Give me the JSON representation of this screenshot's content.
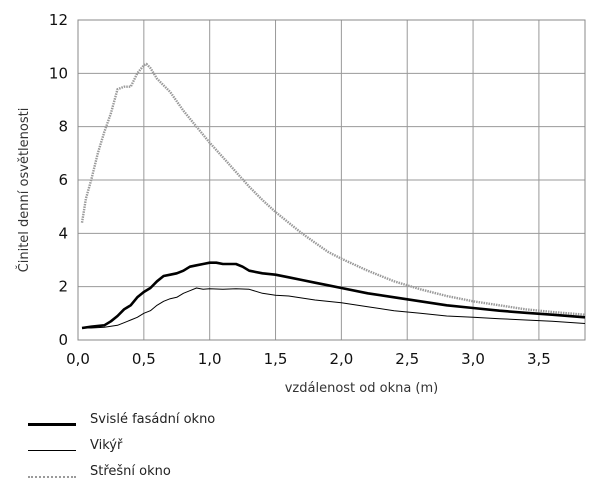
{
  "chart_data": {
    "type": "line",
    "xlabel": "vzdálenost od okna (m)",
    "ylabel": "Činitel denní osvětlenosti",
    "xlim": [
      0,
      3.85
    ],
    "ylim": [
      0,
      12
    ],
    "x_ticks": [
      "0,0",
      "0,5",
      "1,0",
      "1,5",
      "2,0",
      "2,5",
      "3,0",
      "3,5"
    ],
    "y_ticks": [
      "0",
      "2",
      "4",
      "6",
      "8",
      "10",
      "12"
    ],
    "grid": true,
    "legend_position": "bottom-left",
    "series": [
      {
        "name": "Svislé fasádní okno",
        "color": "#000000",
        "style": "thick",
        "x": [
          0.03,
          0.1,
          0.2,
          0.25,
          0.3,
          0.35,
          0.4,
          0.45,
          0.5,
          0.55,
          0.6,
          0.65,
          0.7,
          0.75,
          0.8,
          0.85,
          0.9,
          0.95,
          1.0,
          1.05,
          1.1,
          1.15,
          1.2,
          1.25,
          1.3,
          1.4,
          1.5,
          1.6,
          1.7,
          1.8,
          1.9,
          2.0,
          2.2,
          2.4,
          2.6,
          2.8,
          3.0,
          3.2,
          3.4,
          3.6,
          3.85
        ],
        "y": [
          0.45,
          0.5,
          0.55,
          0.7,
          0.9,
          1.15,
          1.3,
          1.6,
          1.8,
          1.95,
          2.2,
          2.4,
          2.45,
          2.5,
          2.6,
          2.75,
          2.8,
          2.85,
          2.9,
          2.9,
          2.85,
          2.85,
          2.85,
          2.75,
          2.6,
          2.5,
          2.45,
          2.35,
          2.25,
          2.15,
          2.05,
          1.95,
          1.75,
          1.6,
          1.45,
          1.3,
          1.2,
          1.1,
          1.02,
          0.95,
          0.85
        ]
      },
      {
        "name": "Vikýř",
        "color": "#000000",
        "style": "thin",
        "x": [
          0.03,
          0.1,
          0.2,
          0.3,
          0.35,
          0.4,
          0.45,
          0.5,
          0.55,
          0.6,
          0.65,
          0.7,
          0.75,
          0.8,
          0.85,
          0.9,
          0.95,
          1.0,
          1.1,
          1.2,
          1.3,
          1.4,
          1.5,
          1.6,
          1.8,
          2.0,
          2.2,
          2.4,
          2.6,
          2.8,
          3.0,
          3.2,
          3.4,
          3.6,
          3.85
        ],
        "y": [
          0.45,
          0.45,
          0.48,
          0.55,
          0.65,
          0.75,
          0.85,
          1.0,
          1.1,
          1.3,
          1.45,
          1.55,
          1.6,
          1.75,
          1.85,
          1.95,
          1.9,
          1.92,
          1.9,
          1.92,
          1.9,
          1.75,
          1.68,
          1.65,
          1.5,
          1.4,
          1.25,
          1.1,
          1.0,
          0.9,
          0.85,
          0.8,
          0.75,
          0.7,
          0.62
        ]
      },
      {
        "name": "Střešní okno",
        "color": "#9a9a9a",
        "style": "dotted",
        "x": [
          0.03,
          0.06,
          0.1,
          0.15,
          0.2,
          0.25,
          0.3,
          0.35,
          0.4,
          0.45,
          0.5,
          0.52,
          0.55,
          0.6,
          0.7,
          0.8,
          0.9,
          1.0,
          1.1,
          1.2,
          1.3,
          1.4,
          1.5,
          1.6,
          1.7,
          1.8,
          1.9,
          2.0,
          2.2,
          2.4,
          2.6,
          2.8,
          3.0,
          3.2,
          3.4,
          3.6,
          3.85
        ],
        "y": [
          4.4,
          5.3,
          6.0,
          7.0,
          7.8,
          8.5,
          9.4,
          9.5,
          9.5,
          10.0,
          10.3,
          10.35,
          10.2,
          9.8,
          9.3,
          8.6,
          8.0,
          7.4,
          6.85,
          6.3,
          5.75,
          5.25,
          4.8,
          4.4,
          4.0,
          3.65,
          3.3,
          3.05,
          2.6,
          2.2,
          1.9,
          1.65,
          1.45,
          1.3,
          1.15,
          1.05,
          0.95
        ]
      }
    ]
  }
}
